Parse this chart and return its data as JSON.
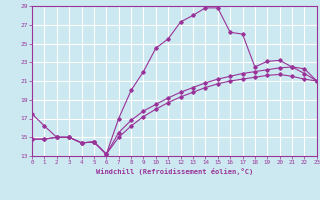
{
  "xlabel": "Windchill (Refroidissement éolien,°C)",
  "bg_color": "#cce8f0",
  "grid_color": "#ffffff",
  "line_color": "#993399",
  "xlim": [
    0,
    23
  ],
  "ylim": [
    13,
    29
  ],
  "xticks": [
    0,
    1,
    2,
    3,
    4,
    5,
    6,
    7,
    8,
    9,
    10,
    11,
    12,
    13,
    14,
    15,
    16,
    17,
    18,
    19,
    20,
    21,
    22,
    23
  ],
  "yticks": [
    13,
    15,
    17,
    19,
    21,
    23,
    25,
    27,
    29
  ],
  "curve1_x": [
    0,
    1,
    2,
    3,
    4,
    5,
    6,
    7,
    8,
    9,
    10,
    11,
    12,
    13,
    14,
    15,
    16,
    17,
    18,
    19,
    20,
    21,
    22,
    23
  ],
  "curve1_y": [
    17.5,
    16.2,
    15.0,
    15.0,
    14.4,
    14.5,
    13.2,
    17.0,
    20.0,
    22.0,
    24.5,
    25.5,
    27.3,
    28.0,
    28.8,
    28.8,
    26.2,
    26.0,
    22.5,
    23.1,
    23.2,
    22.5,
    21.8,
    21.0
  ],
  "curve2_x": [
    0,
    1,
    2,
    3,
    4,
    5,
    6,
    7,
    8,
    9,
    10,
    11,
    12,
    13,
    14,
    15,
    16,
    17,
    18,
    19,
    20,
    21,
    22,
    23
  ],
  "curve2_y": [
    14.8,
    14.8,
    15.0,
    15.0,
    14.4,
    14.5,
    13.2,
    15.5,
    16.8,
    17.8,
    18.5,
    19.2,
    19.8,
    20.3,
    20.8,
    21.2,
    21.5,
    21.8,
    22.0,
    22.2,
    22.4,
    22.5,
    22.3,
    21.0
  ],
  "curve3_x": [
    0,
    1,
    2,
    3,
    4,
    5,
    6,
    7,
    8,
    9,
    10,
    11,
    12,
    13,
    14,
    15,
    16,
    17,
    18,
    19,
    20,
    21,
    22,
    23
  ],
  "curve3_y": [
    14.8,
    14.8,
    15.0,
    15.0,
    14.4,
    14.5,
    13.2,
    15.0,
    16.2,
    17.2,
    18.0,
    18.7,
    19.3,
    19.8,
    20.3,
    20.7,
    21.0,
    21.2,
    21.4,
    21.6,
    21.7,
    21.5,
    21.2,
    21.0
  ]
}
